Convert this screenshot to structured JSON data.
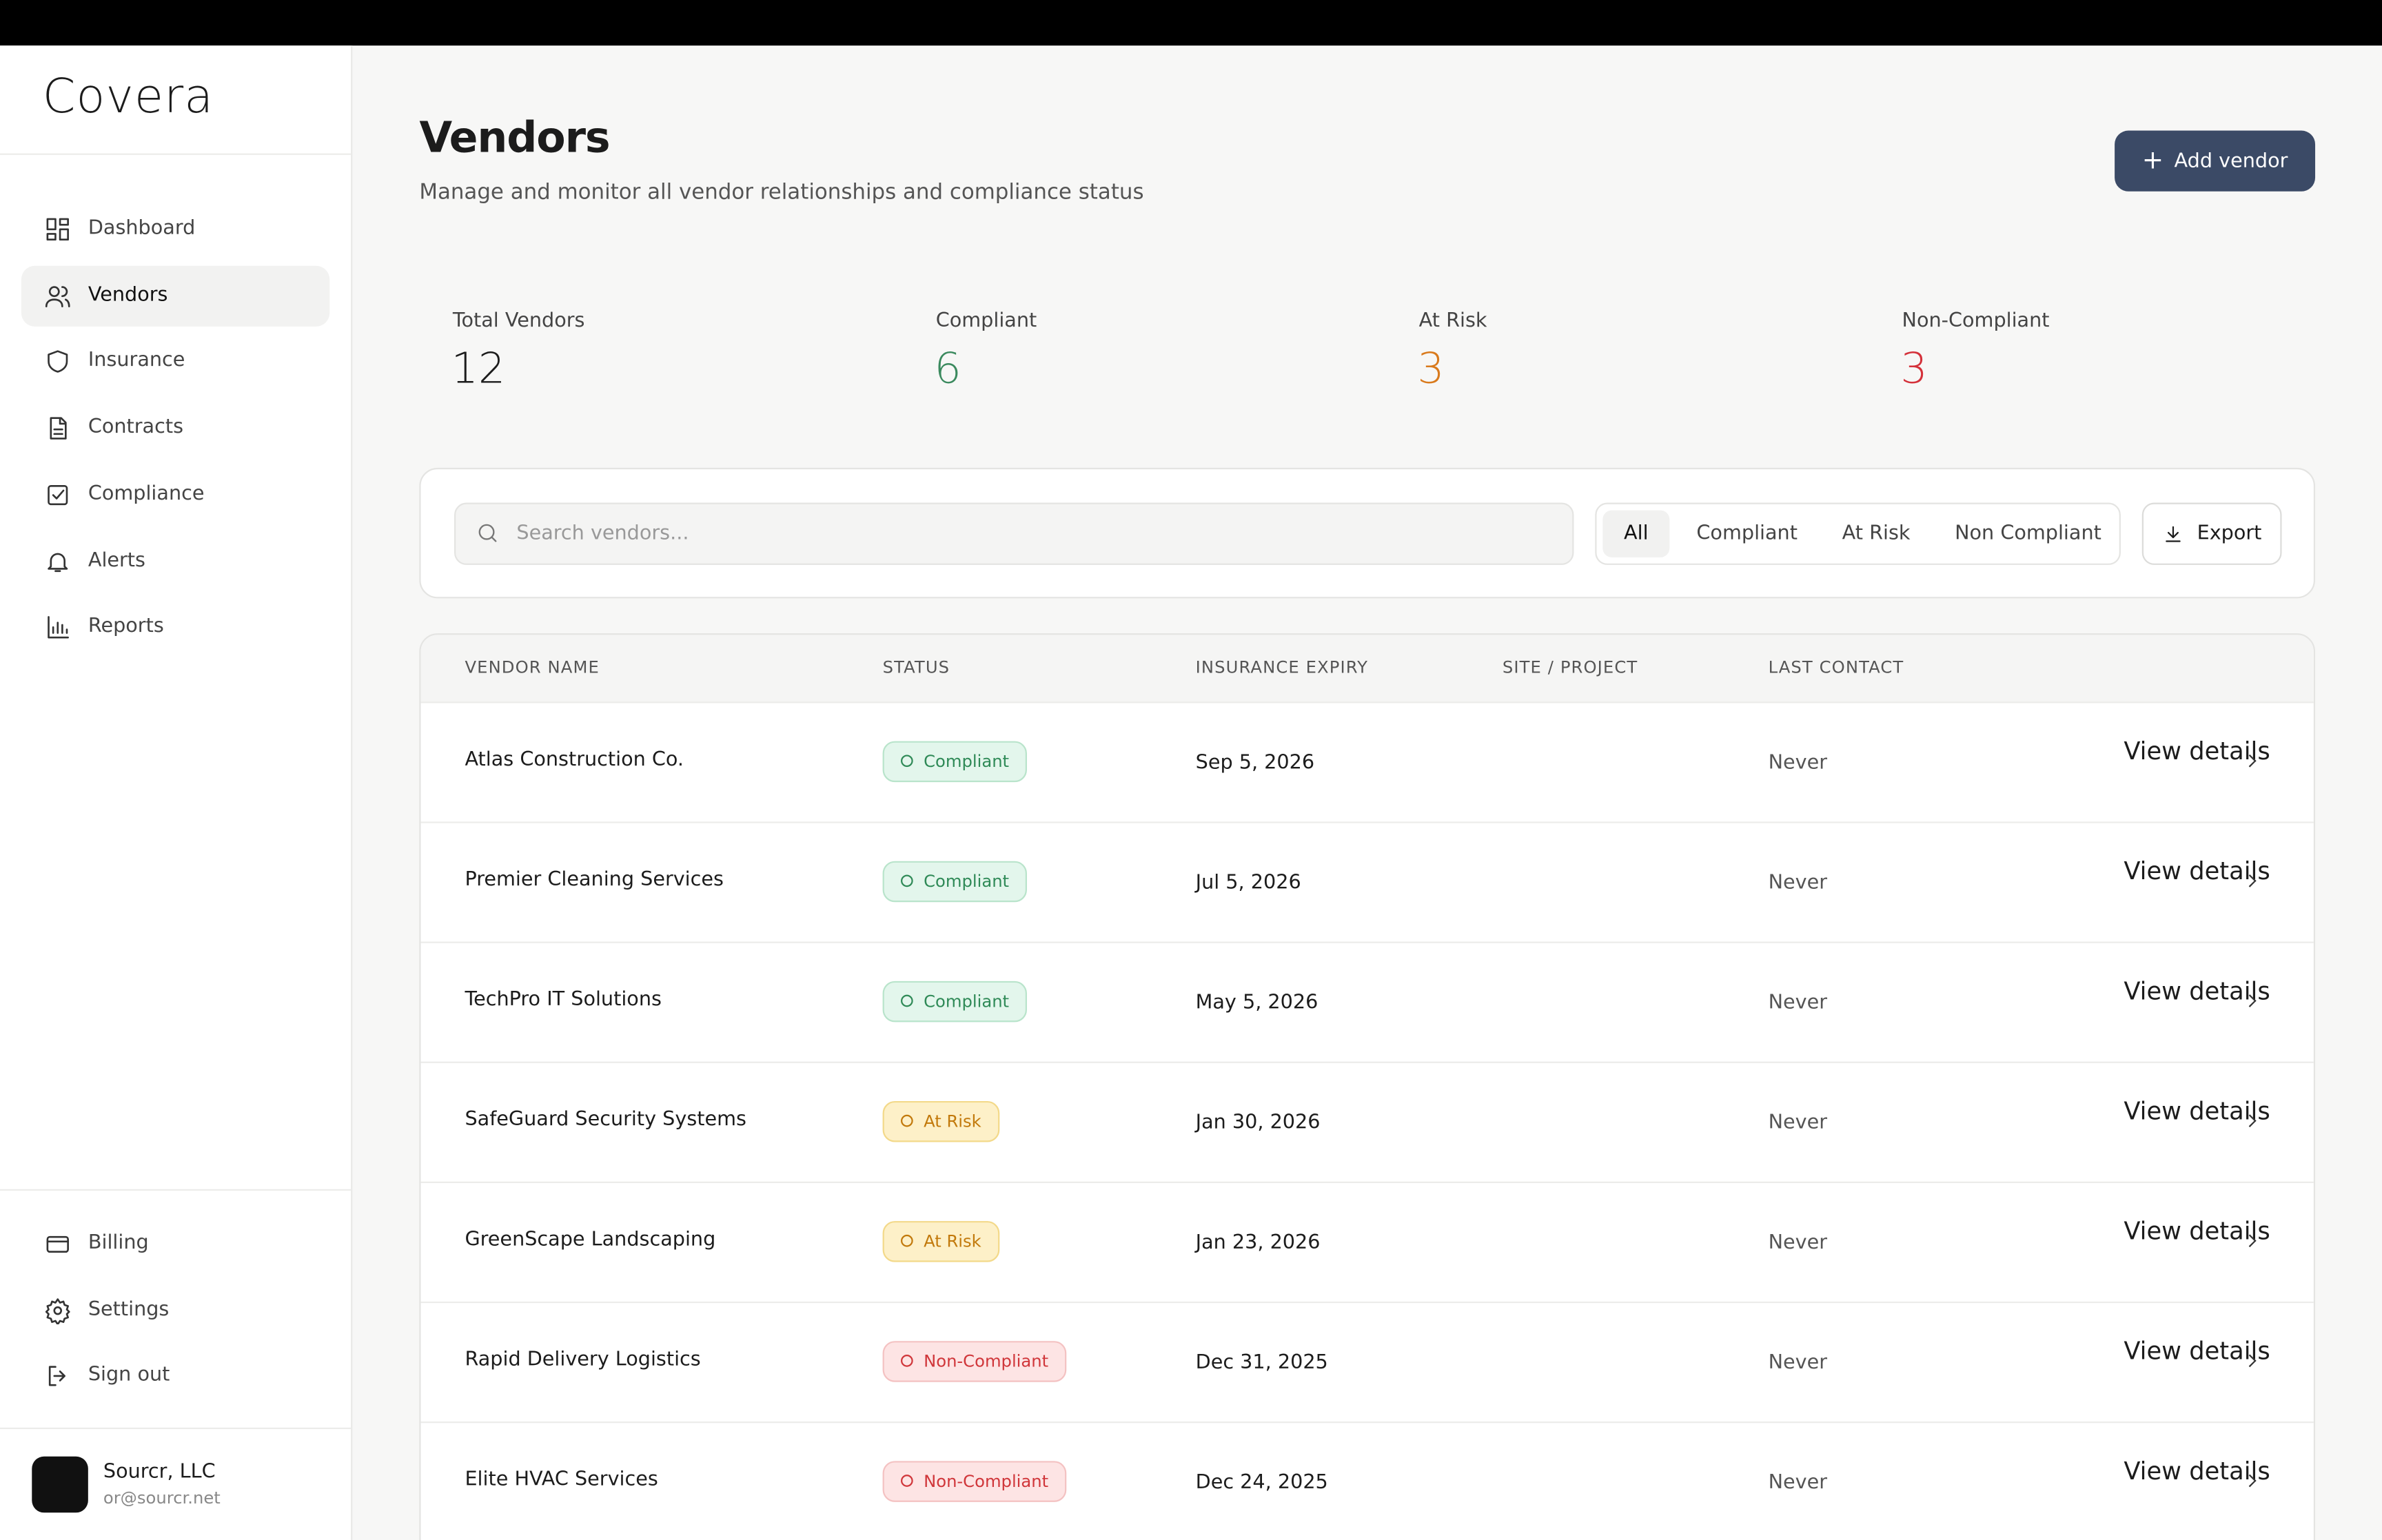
{
  "sidebar": {
    "logo": "Covera",
    "nav": [
      "Dashboard",
      "Vendors",
      "Insurance",
      "Contracts",
      "Compliance",
      "Alerts",
      "Reports"
    ],
    "active": 1,
    "bottom_nav": [
      "Billing",
      "Settings",
      "Sign out"
    ],
    "account": {
      "name": "Sourcr, LLC",
      "email": "or@sourcr.net"
    }
  },
  "header": {
    "title": "Vendors",
    "subtitle": "Manage and monitor all vendor relationships and compliance status",
    "button": "Add vendor"
  },
  "stats": [
    {
      "label": "Total Vendors",
      "value": 12,
      "color": "#1c1c1c"
    },
    {
      "label": "Compliant",
      "value": 6,
      "color": "#3b8a5e"
    },
    {
      "label": "At Risk",
      "value": 3,
      "color": "#d97a1c"
    },
    {
      "label": "Non-Compliant",
      "value": 3,
      "color": "#d4313a"
    }
  ],
  "toolbar": {
    "search_placeholder": "Search vendors...",
    "filters": [
      "All",
      "Compliant",
      "At Risk",
      "Non Compliant"
    ],
    "active_filter": 0,
    "export": "Export"
  },
  "table": {
    "headers": [
      "VENDOR NAME",
      "STATUS",
      "INSURANCE EXPIRY",
      "SITE / PROJECT",
      "LAST CONTACT"
    ],
    "rows": [
      {
        "name": "Atlas Construction Co.",
        "status": "Compliant",
        "expiry": "Sep 5, 2026",
        "last_contact": "Never",
        "action": "View details"
      },
      {
        "name": "Premier Cleaning Services",
        "status": "Compliant",
        "expiry": "Jul 5, 2026",
        "last_contact": "Never",
        "action": "View details"
      },
      {
        "name": "TechPro IT Solutions",
        "status": "Compliant",
        "expiry": "May 5, 2026",
        "last_contact": "Never",
        "action": "View details"
      },
      {
        "name": "SafeGuard Security Systems",
        "status": "At Risk",
        "expiry": "Jan 30, 2026",
        "last_contact": "Never",
        "action": "View details"
      },
      {
        "name": "GreenScape Landscaping",
        "status": "At Risk",
        "expiry": "Jan 23, 2026",
        "last_contact": "Never",
        "action": "View details"
      },
      {
        "name": "Rapid Delivery Logistics",
        "status": "Non-Compliant",
        "expiry": "Dec 31, 2025",
        "last_contact": "Never",
        "action": "View details"
      },
      {
        "name": "Elite HVAC Services",
        "status": "Non-Compliant",
        "expiry": "Dec 24, 2025",
        "last_contact": "Never",
        "action": "View details"
      }
    ]
  }
}
